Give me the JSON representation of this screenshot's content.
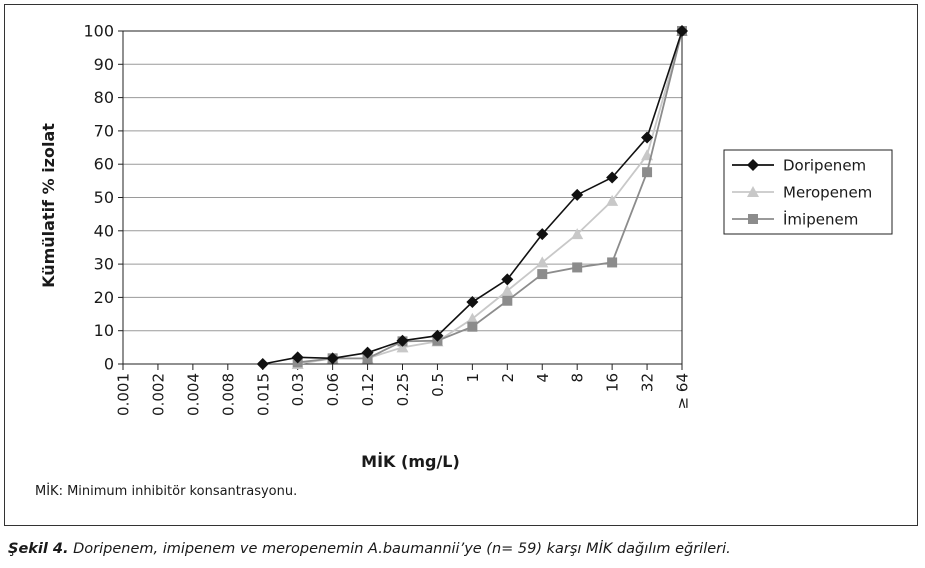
{
  "chart_data": {
    "type": "line",
    "xlabel": "MİK (mg/L)",
    "ylabel": "Kümülatif % izolat",
    "ylim": [
      0,
      100
    ],
    "yticks": [
      0,
      10,
      20,
      30,
      40,
      50,
      60,
      70,
      80,
      90,
      100
    ],
    "grid": "horizontal",
    "legend_position": "right",
    "categories": [
      "0.001",
      "0.002",
      "0.004",
      "0.008",
      "0.015",
      "0.03",
      "0.06",
      "0.12",
      "0.25",
      "0.5",
      "1",
      "2",
      "4",
      "8",
      "16",
      "32",
      "≥ 64"
    ],
    "series": [
      {
        "name": "Doripenem",
        "color": "#111111",
        "marker": "diamond",
        "values": [
          null,
          null,
          null,
          null,
          0,
          2,
          1.7,
          3.4,
          7,
          8.5,
          18.6,
          25.4,
          39,
          50.8,
          56,
          68,
          100
        ]
      },
      {
        "name": "Meropenem",
        "color": "#c8c8c8",
        "marker": "triangle",
        "values": [
          null,
          null,
          null,
          null,
          null,
          0,
          1.7,
          1.7,
          5,
          6.8,
          13.6,
          22,
          30.5,
          39,
          49,
          62.7,
          100
        ]
      },
      {
        "name": "İmipenem",
        "color": "#8c8c8c",
        "marker": "square",
        "values": [
          null,
          null,
          null,
          null,
          null,
          0.5,
          1.7,
          1.7,
          6.8,
          7,
          11.2,
          19,
          27,
          29,
          30.5,
          57.6,
          100
        ]
      }
    ]
  },
  "note": "MİK: Minimum inhibitör konsantrasyonu.",
  "caption": {
    "label": "Şekil 4.",
    "text": " Doripenem, imipenem ve meropenemin A.baumannii’ye (n= 59) karşı MİK dağılım eğrileri."
  }
}
